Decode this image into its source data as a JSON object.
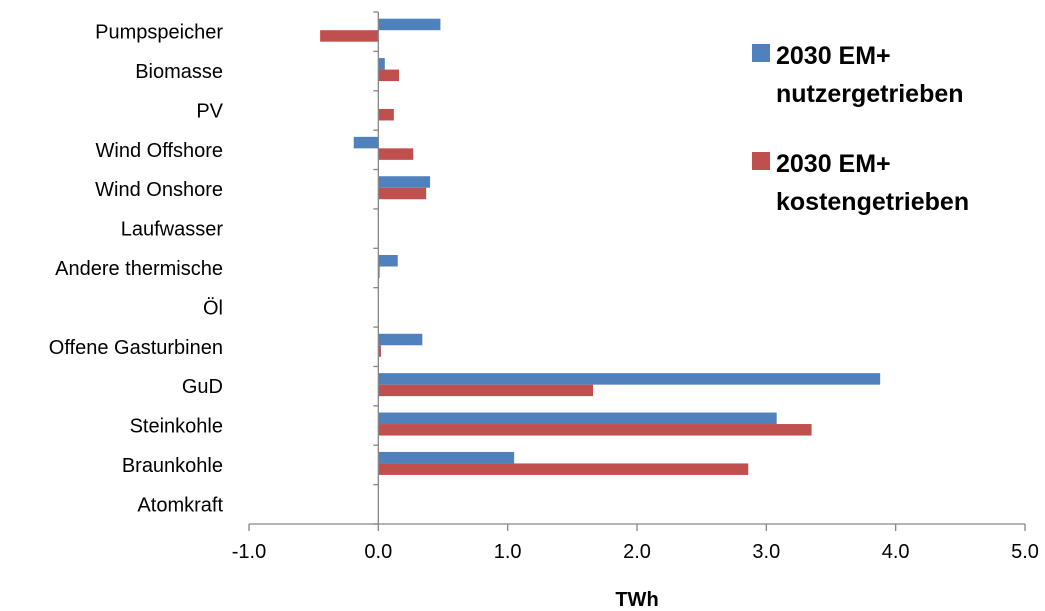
{
  "chart_data": {
    "type": "bar",
    "orientation": "horizontal",
    "categories": [
      "Pumpspeicher",
      "Biomasse",
      "PV",
      "Wind Offshore",
      "Wind Onshore",
      "Laufwasser",
      "Andere thermische",
      "Öl",
      "Offene Gasturbinen",
      "GuD",
      "Steinkohle",
      "Braunkohle",
      "Atomkraft"
    ],
    "series": [
      {
        "name_lines": [
          "2030 EM+",
          "nutzergetrieben"
        ],
        "color": "#4F81BD",
        "values": [
          0.48,
          0.05,
          0.0,
          -0.19,
          0.4,
          0.0,
          0.15,
          0.0,
          0.34,
          3.88,
          3.08,
          1.05,
          0.0
        ]
      },
      {
        "name_lines": [
          "2030 EM+",
          "kostengetrieben"
        ],
        "color": "#C0504D",
        "values": [
          -0.45,
          0.16,
          0.12,
          0.27,
          0.37,
          0.0,
          0.01,
          0.0,
          0.02,
          1.66,
          3.35,
          2.86,
          0.0
        ]
      }
    ],
    "xlim": [
      -1.0,
      5.0
    ],
    "xticks": [
      "-1.0",
      "0.0",
      "1.0",
      "2.0",
      "3.0",
      "4.0",
      "5.0"
    ],
    "xlabel": "TWh",
    "ylabel": "",
    "title": "",
    "grid": false,
    "legend_position": "top-right"
  }
}
